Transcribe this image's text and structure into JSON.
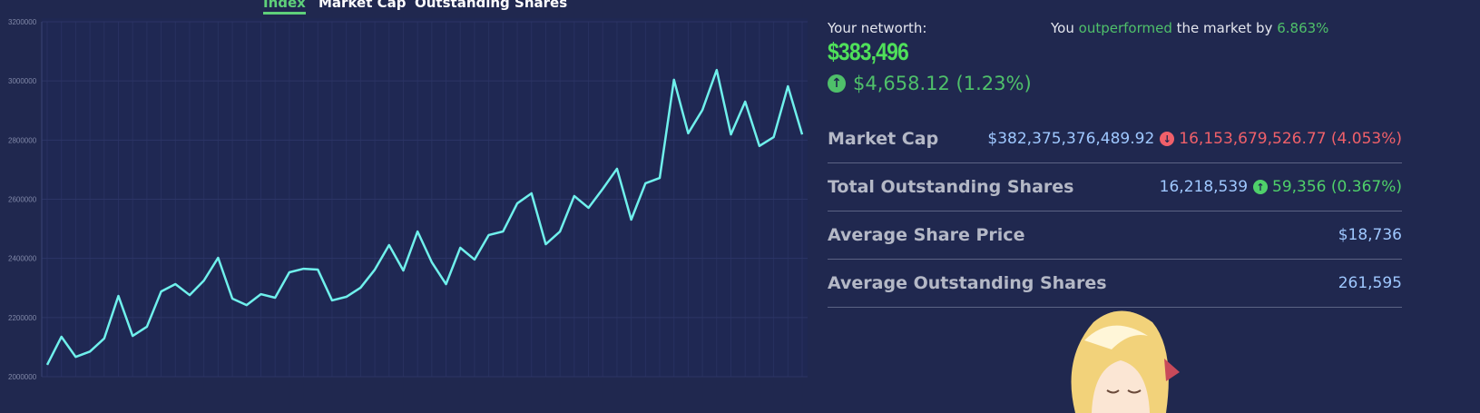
{
  "tabs": [
    "Index",
    "Market Cap",
    "Outstanding Shares"
  ],
  "chart_data": {
    "type": "line",
    "categories": [
      null,
      null,
      null,
      null,
      null,
      null,
      null,
      null,
      null,
      null,
      null,
      null,
      null,
      null,
      null,
      null,
      null,
      null,
      null,
      null,
      null,
      null,
      null,
      null,
      null,
      null,
      null,
      null,
      null,
      null,
      null,
      null,
      null,
      null,
      null,
      null,
      null,
      null,
      null,
      null,
      null,
      null,
      null,
      null,
      null,
      null,
      null,
      null,
      null,
      null,
      null,
      null,
      null,
      null
    ],
    "values": [
      2040000,
      2135000,
      2067000,
      2085000,
      2129000,
      2273000,
      2138000,
      2169000,
      2288000,
      2313000,
      2276000,
      2325000,
      2402000,
      2264000,
      2242000,
      2279000,
      2267000,
      2353000,
      2365000,
      2362000,
      2258000,
      2270000,
      2301000,
      2362000,
      2445000,
      2359000,
      2491000,
      2387000,
      2313000,
      2436000,
      2396000,
      2479000,
      2491000,
      2586000,
      2620000,
      2448000,
      2491000,
      2611000,
      2571000,
      2635000,
      2703000,
      2531000,
      2654000,
      2672000,
      3004000,
      2823000,
      2902000,
      3037000,
      2819000,
      2930000,
      2780000,
      2810000,
      2982000,
      2819000
    ],
    "color": "#6ff0ec",
    "ylim": [
      2000000,
      3200000
    ],
    "yticks": [
      2000000,
      2200000,
      2400000,
      2600000,
      2800000,
      3000000,
      3200000
    ],
    "grid": true
  },
  "networth": {
    "label": "Your networth:",
    "value": "$383,496",
    "change": "$4,658.12 (1.23%)"
  },
  "outperformance": {
    "prefix": "You",
    "highlight": "outperformed",
    "middle": "the market by",
    "percent": "6.863%"
  },
  "stats": [
    {
      "label": "Market Cap",
      "value": "$382,375,376,489.92",
      "change": "16,153,679,526.77 (4.053%)",
      "direction": "down"
    },
    {
      "label": "Total Outstanding Shares",
      "value": "16,218,539",
      "change": "59,356 (0.367%)",
      "direction": "up"
    },
    {
      "label": "Average Share Price",
      "value": "$18,736"
    },
    {
      "label": "Average Outstanding Shares",
      "value": "261,595"
    }
  ]
}
